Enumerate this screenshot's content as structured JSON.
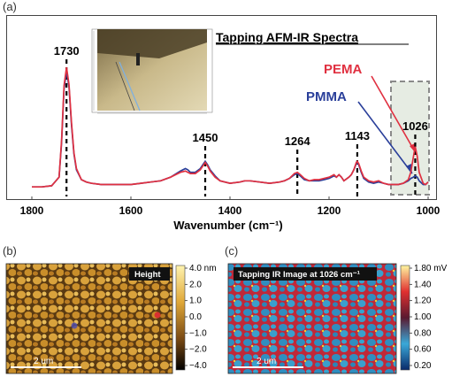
{
  "panels": {
    "a": "(a)",
    "b": "(b)",
    "c": "(c)"
  },
  "spectra": {
    "title": "Tapping AFM-IR Spectra",
    "legend": {
      "pema": "PEMA",
      "pmma": "PMMA"
    },
    "colors": {
      "pema": "#e03040",
      "pmma": "#2a3f9a"
    },
    "highlight_label": "1026"
  },
  "chart_data": {
    "type": "line",
    "xlabel": "Wavenumber (cm⁻¹)",
    "ylabel": "",
    "xlim": [
      1800,
      1000
    ],
    "x_ticks": [
      "1800",
      "1600",
      "1400",
      "1200",
      "1000"
    ],
    "peaks": [
      {
        "x": 1730,
        "label": "1730"
      },
      {
        "x": 1450,
        "label": "1450"
      },
      {
        "x": 1264,
        "label": "1264"
      },
      {
        "x": 1143,
        "label": "1143"
      },
      {
        "x": 1026,
        "label": "1026"
      }
    ],
    "series": [
      {
        "name": "PEMA",
        "x": [
          1800,
          1780,
          1760,
          1745,
          1740,
          1735,
          1730,
          1725,
          1720,
          1715,
          1710,
          1700,
          1690,
          1680,
          1660,
          1640,
          1620,
          1600,
          1580,
          1560,
          1540,
          1520,
          1500,
          1490,
          1485,
          1480,
          1470,
          1460,
          1455,
          1450,
          1445,
          1440,
          1430,
          1420,
          1400,
          1380,
          1370,
          1360,
          1340,
          1320,
          1300,
          1290,
          1280,
          1270,
          1264,
          1258,
          1250,
          1240,
          1230,
          1220,
          1210,
          1200,
          1190,
          1185,
          1180,
          1175,
          1170,
          1160,
          1155,
          1150,
          1145,
          1143,
          1140,
          1135,
          1130,
          1120,
          1110,
          1100,
          1090,
          1080,
          1070,
          1060,
          1050,
          1040,
          1035,
          1030,
          1026,
          1022,
          1018,
          1010,
          1005,
          1000
        ],
        "y": [
          0.02,
          0.02,
          0.03,
          0.1,
          0.4,
          0.85,
          1.0,
          0.86,
          0.55,
          0.3,
          0.17,
          0.08,
          0.06,
          0.05,
          0.04,
          0.04,
          0.04,
          0.04,
          0.05,
          0.06,
          0.07,
          0.1,
          0.14,
          0.15,
          0.14,
          0.13,
          0.13,
          0.16,
          0.19,
          0.22,
          0.19,
          0.15,
          0.1,
          0.07,
          0.05,
          0.06,
          0.07,
          0.07,
          0.06,
          0.05,
          0.06,
          0.07,
          0.09,
          0.13,
          0.14,
          0.12,
          0.09,
          0.07,
          0.08,
          0.08,
          0.09,
          0.1,
          0.12,
          0.1,
          0.12,
          0.1,
          0.07,
          0.1,
          0.12,
          0.16,
          0.22,
          0.23,
          0.21,
          0.15,
          0.1,
          0.07,
          0.06,
          0.07,
          0.05,
          0.04,
          0.04,
          0.04,
          0.05,
          0.08,
          0.14,
          0.26,
          0.35,
          0.27,
          0.14,
          0.05,
          0.04,
          0.06
        ]
      },
      {
        "name": "PMMA",
        "x": [
          1800,
          1780,
          1760,
          1745,
          1740,
          1735,
          1730,
          1725,
          1720,
          1715,
          1710,
          1700,
          1690,
          1680,
          1660,
          1640,
          1620,
          1600,
          1580,
          1560,
          1540,
          1520,
          1500,
          1490,
          1485,
          1480,
          1470,
          1460,
          1455,
          1450,
          1445,
          1440,
          1430,
          1420,
          1400,
          1380,
          1370,
          1360,
          1340,
          1320,
          1300,
          1290,
          1280,
          1270,
          1264,
          1258,
          1250,
          1240,
          1230,
          1220,
          1210,
          1200,
          1190,
          1185,
          1180,
          1175,
          1170,
          1160,
          1155,
          1150,
          1145,
          1143,
          1140,
          1135,
          1130,
          1120,
          1110,
          1100,
          1090,
          1080,
          1070,
          1060,
          1050,
          1040,
          1035,
          1030,
          1026,
          1022,
          1018,
          1010,
          1005,
          1000
        ],
        "y": [
          0.02,
          0.02,
          0.03,
          0.1,
          0.38,
          0.82,
          0.97,
          0.84,
          0.53,
          0.29,
          0.16,
          0.08,
          0.06,
          0.05,
          0.04,
          0.04,
          0.04,
          0.04,
          0.05,
          0.06,
          0.07,
          0.1,
          0.15,
          0.17,
          0.16,
          0.14,
          0.14,
          0.17,
          0.2,
          0.23,
          0.2,
          0.16,
          0.11,
          0.07,
          0.05,
          0.06,
          0.07,
          0.07,
          0.06,
          0.05,
          0.06,
          0.07,
          0.09,
          0.12,
          0.13,
          0.11,
          0.08,
          0.07,
          0.07,
          0.07,
          0.08,
          0.09,
          0.11,
          0.1,
          0.12,
          0.1,
          0.07,
          0.1,
          0.12,
          0.16,
          0.21,
          0.22,
          0.2,
          0.14,
          0.09,
          0.06,
          0.05,
          0.06,
          0.05,
          0.04,
          0.04,
          0.04,
          0.05,
          0.07,
          0.09,
          0.1,
          0.11,
          0.1,
          0.07,
          0.04,
          0.04,
          0.06
        ]
      }
    ]
  },
  "height_map": {
    "tag": "Height",
    "scale_bar": "2 um",
    "colorbar_labels": [
      "4.0 nm",
      "2.0",
      "1.0",
      "0.0",
      "−1.0",
      "−2.0",
      "−4.0"
    ]
  },
  "ir_map": {
    "tag": "Tapping IR Image at 1026 cm⁻¹",
    "scale_bar": "2 um",
    "colorbar_labels": [
      "1.80 mV",
      "1.40",
      "1.20",
      "1.00",
      "0.80",
      "0.60",
      "0.20"
    ]
  }
}
